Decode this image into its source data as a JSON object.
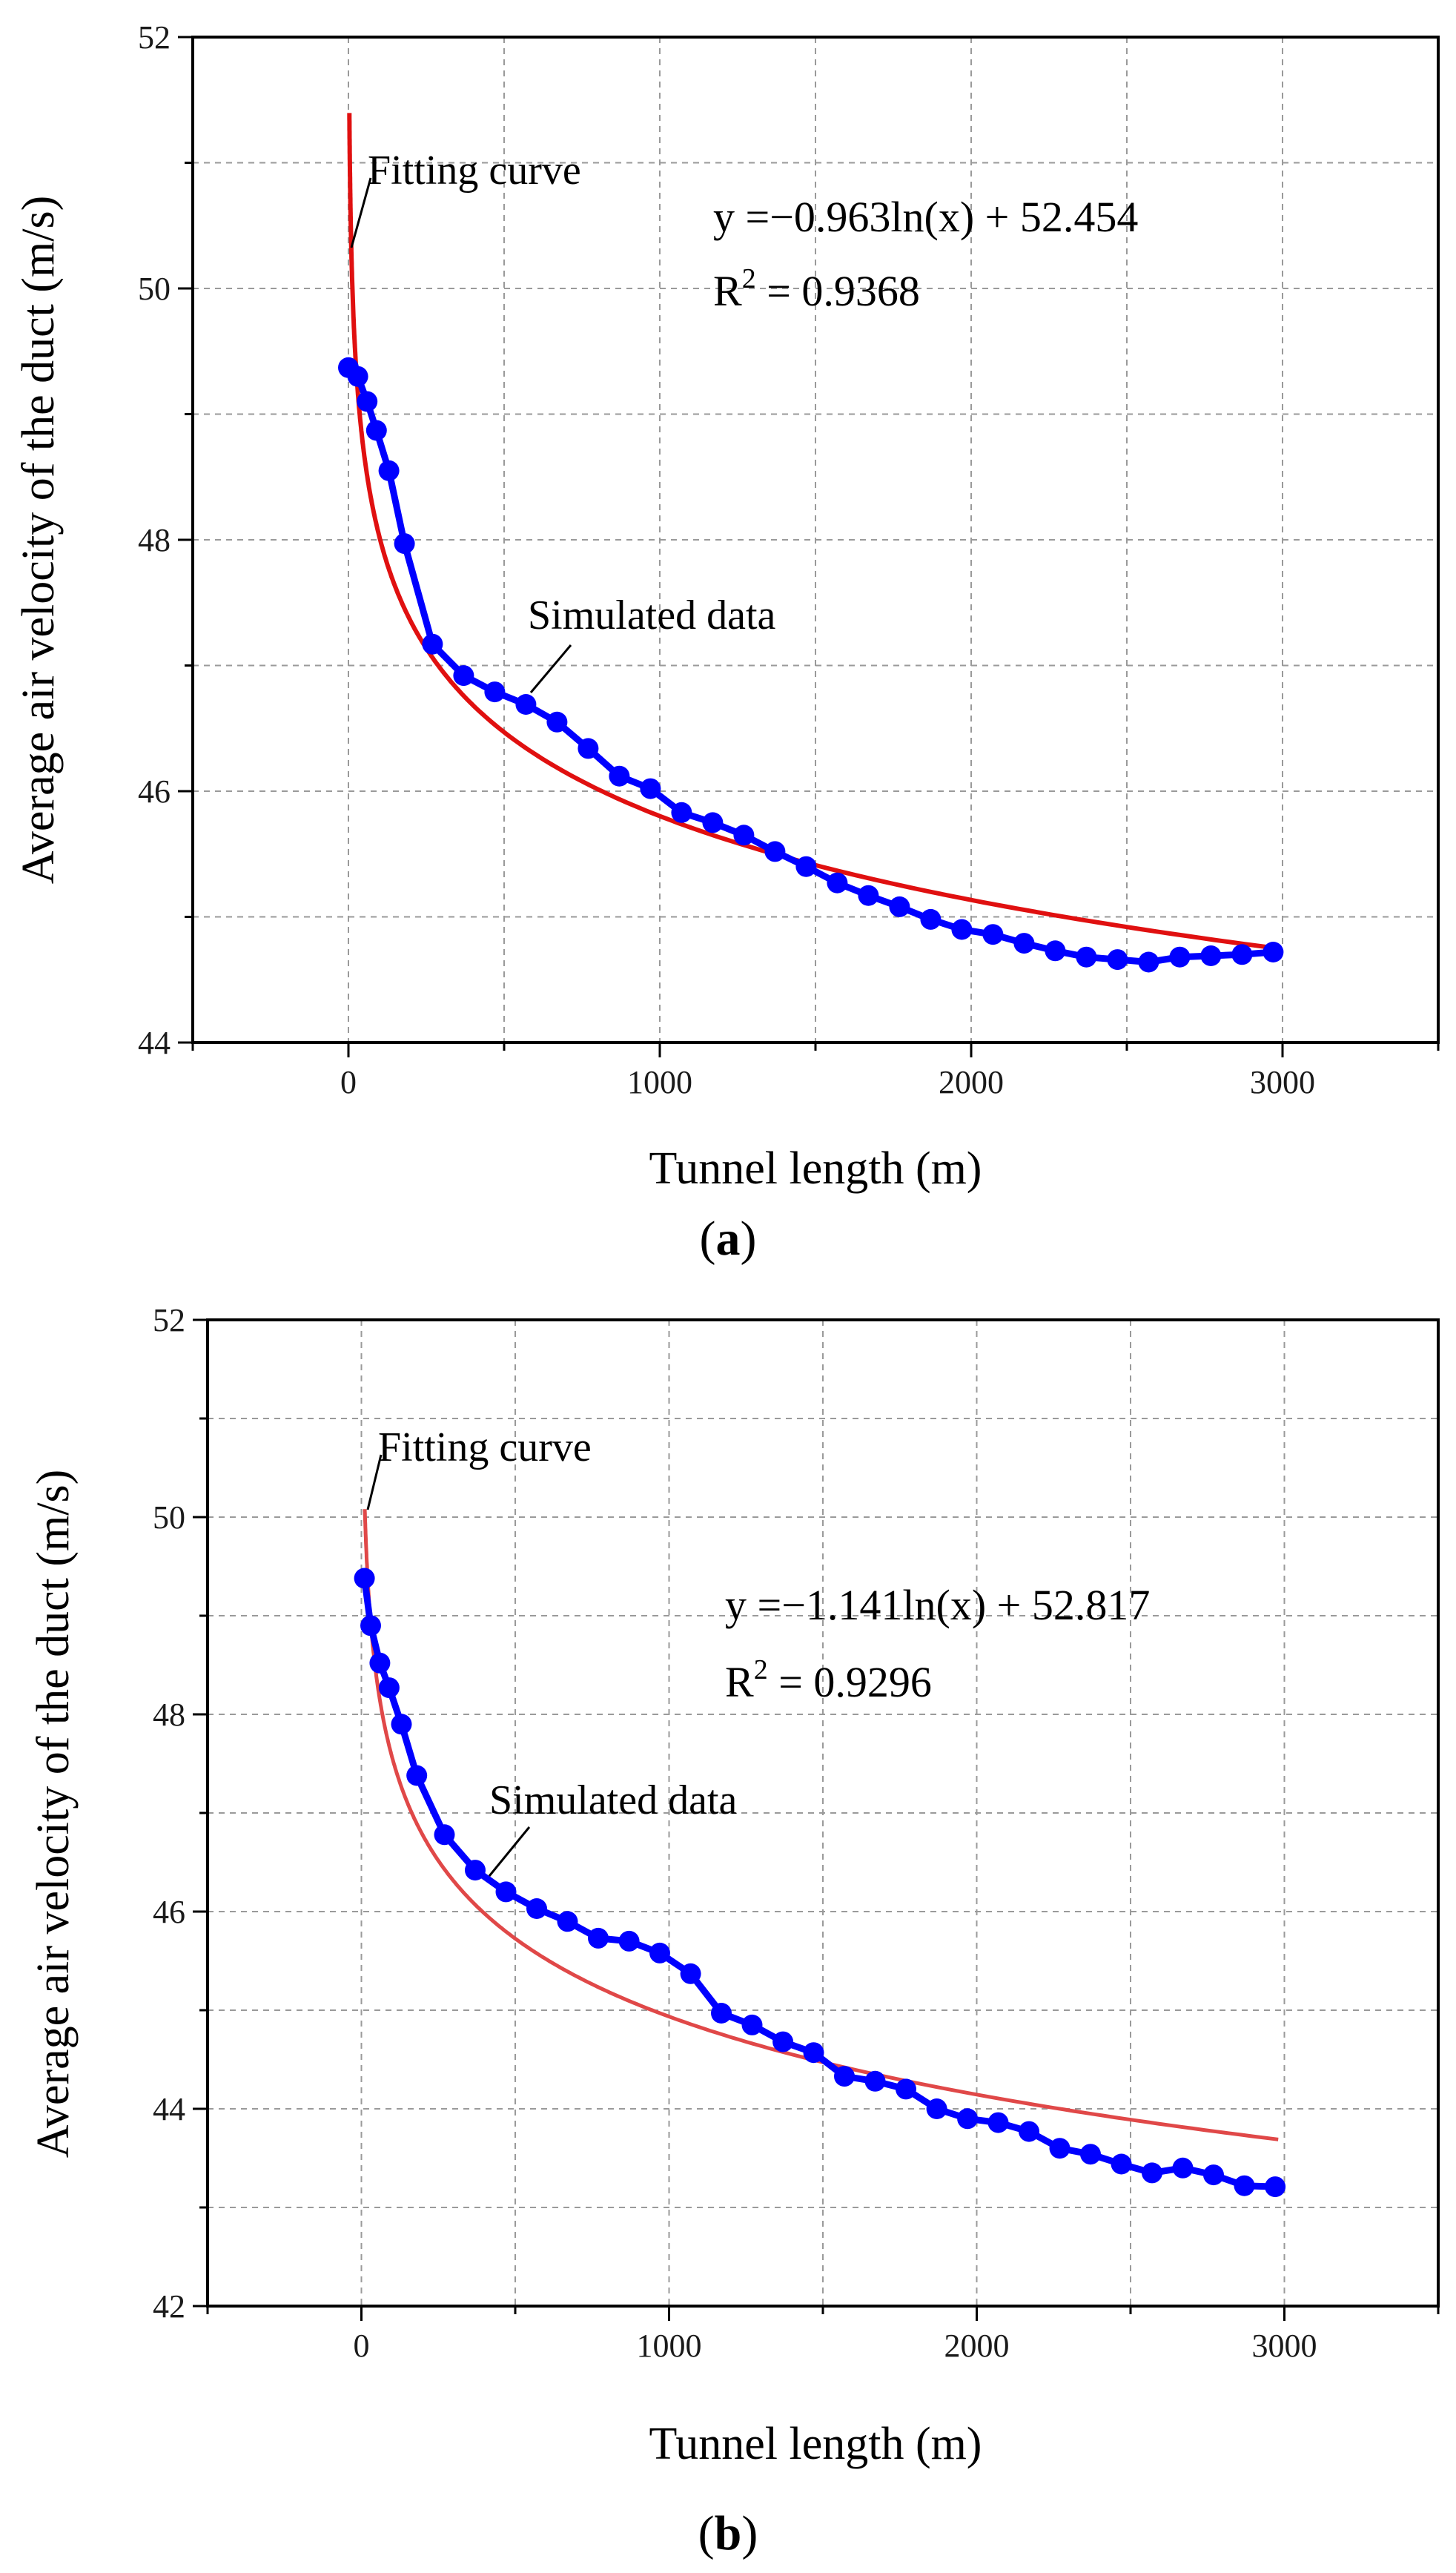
{
  "chart_data": [
    {
      "type": "line",
      "panel_label": "a",
      "xlabel": "Tunnel length (m)",
      "ylabel": "Average air velocity of the duct (m/s)",
      "xlim": [
        -500,
        3500
      ],
      "ylim": [
        44,
        52
      ],
      "xticks": [
        0,
        1000,
        2000,
        3000
      ],
      "yticks": [
        44,
        46,
        48,
        50,
        52
      ],
      "grid": true,
      "series": [
        {
          "name": "Simulated data",
          "color": "#0000ff",
          "style": "line+markers",
          "x": [
            0,
            30,
            60,
            90,
            130,
            180,
            270,
            370,
            470,
            570,
            670,
            770,
            870,
            970,
            1070,
            1170,
            1270,
            1370,
            1470,
            1570,
            1670,
            1770,
            1870,
            1970,
            2070,
            2170,
            2270,
            2370,
            2470,
            2570,
            2670,
            2770,
            2870,
            2970
          ],
          "y": [
            49.37,
            49.3,
            49.1,
            48.87,
            48.55,
            47.97,
            47.17,
            46.92,
            46.79,
            46.69,
            46.55,
            46.34,
            46.12,
            46.02,
            45.83,
            45.75,
            45.65,
            45.52,
            45.4,
            45.27,
            45.17,
            45.08,
            44.98,
            44.9,
            44.86,
            44.79,
            44.73,
            44.68,
            44.66,
            44.64,
            44.68,
            44.69,
            44.7,
            44.72
          ]
        },
        {
          "name": "Fitting curve",
          "color": "#e01010",
          "style": "line",
          "fit": {
            "a": -0.963,
            "b": 52.454,
            "x_start": 3,
            "x_end": 2980
          }
        }
      ],
      "annotations": {
        "fit_label": "Fitting curve",
        "sim_label": "Simulated data",
        "equation": "y =−0.963ln(x) + 52.454",
        "r2_prefix": "R",
        "r2_sup": "2",
        "r2_value": " = 0.9368"
      }
    },
    {
      "type": "line",
      "panel_label": "b",
      "xlabel": "Tunnel length (m)",
      "ylabel": "Average air velocity of the duct (m/s)",
      "xlim": [
        -500,
        3500
      ],
      "ylim": [
        42,
        52
      ],
      "xticks": [
        0,
        1000,
        2000,
        3000
      ],
      "yticks": [
        42,
        44,
        46,
        48,
        50,
        52
      ],
      "grid": true,
      "series": [
        {
          "name": "Simulated data",
          "color": "#0000ff",
          "style": "line+markers",
          "x": [
            10,
            30,
            60,
            90,
            130,
            180,
            270,
            370,
            470,
            570,
            670,
            770,
            870,
            970,
            1070,
            1170,
            1270,
            1370,
            1470,
            1570,
            1670,
            1770,
            1870,
            1970,
            2070,
            2170,
            2270,
            2370,
            2470,
            2570,
            2670,
            2770,
            2870,
            2970
          ],
          "y": [
            49.38,
            48.9,
            48.52,
            48.27,
            47.9,
            47.38,
            46.78,
            46.42,
            46.2,
            46.03,
            45.9,
            45.73,
            45.7,
            45.58,
            45.37,
            44.97,
            44.85,
            44.68,
            44.57,
            44.33,
            44.28,
            44.2,
            44.0,
            43.9,
            43.86,
            43.77,
            43.6,
            43.54,
            43.44,
            43.35,
            43.4,
            43.33,
            43.22,
            43.21
          ]
        },
        {
          "name": "Fitting curve",
          "color": "#e04848",
          "style": "line",
          "fit": {
            "a": -1.141,
            "b": 52.817,
            "x_start": 11,
            "x_end": 2980
          }
        }
      ],
      "annotations": {
        "fit_label": "Fitting curve",
        "sim_label": "Simulated data",
        "equation": "y =−1.141ln(x) + 52.817",
        "r2_prefix": "R",
        "r2_sup": "2",
        "r2_value": " = 0.9296"
      }
    }
  ]
}
